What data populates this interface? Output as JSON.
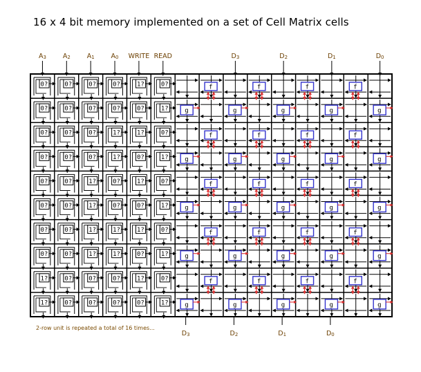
{
  "title": "16 x 4 bit memory implemented on a set of Cell Matrix cells",
  "footnote": "2-row unit is repeated a total of 16 times...",
  "top_labels": [
    {
      "main": "A",
      "sub": "3"
    },
    {
      "main": "A",
      "sub": "2"
    },
    {
      "main": "A",
      "sub": "1"
    },
    {
      "main": "A",
      "sub": "0"
    },
    {
      "main": "WRITE",
      "sub": ""
    },
    {
      "main": "READ",
      "sub": ""
    },
    {
      "main": "D",
      "sub": "3"
    },
    {
      "main": "D",
      "sub": "2"
    },
    {
      "main": "D",
      "sub": "1"
    },
    {
      "main": "D",
      "sub": "0"
    }
  ],
  "bottom_labels": [
    {
      "main": "D",
      "sub": "3"
    },
    {
      "main": "D",
      "sub": "2"
    },
    {
      "main": "D",
      "sub": "1"
    },
    {
      "main": "D",
      "sub": "0"
    }
  ],
  "block_f_label": "f",
  "block_g_label": "g",
  "address_rows": [
    [
      "0?",
      "0?",
      "0?",
      "0?",
      "1?",
      "0?"
    ],
    [
      "0?",
      "0?",
      "0?",
      "0?",
      "0?",
      "1?"
    ],
    [
      "0?",
      "0?",
      "0?",
      "1?",
      "1?",
      "0?"
    ],
    [
      "0?",
      "0?",
      "0?",
      "1?",
      "0?",
      "1?"
    ],
    [
      "0?",
      "0?",
      "1?",
      "0?",
      "1?",
      "0?"
    ],
    [
      "0?",
      "0?",
      "1?",
      "0?",
      "0?",
      "1?"
    ],
    [
      "0?",
      "0?",
      "1?",
      "1?",
      "1?",
      "0?"
    ],
    [
      "0?",
      "0?",
      "1?",
      "1?",
      "0?",
      "1?"
    ],
    [
      "1?",
      "0?",
      "0?",
      "0?",
      "1?",
      "0?"
    ],
    [
      "1?",
      "0?",
      "0?",
      "0?",
      "0?",
      "1?"
    ]
  ],
  "colors": {
    "grid": "#000000",
    "block": "#3333cc",
    "arrow": "#dd3333",
    "label": "#6b3f00"
  }
}
